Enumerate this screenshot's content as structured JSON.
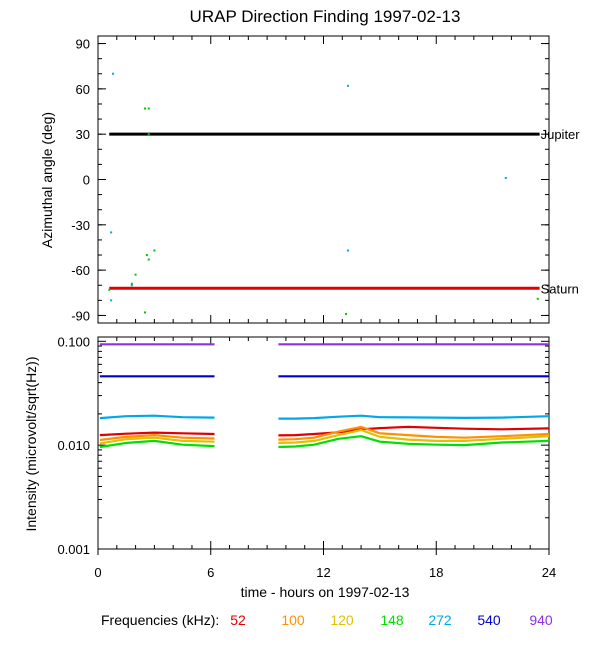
{
  "chart_data": [
    {
      "type": "scatter",
      "title": "URAP Direction Finding  1997-02-13",
      "ylabel": "Azimuthal angle (deg)",
      "xlim": [
        0,
        24
      ],
      "ylim": [
        -95,
        95
      ],
      "yticks": [
        90,
        60,
        30,
        0,
        -30,
        -60,
        -90
      ],
      "ytick_labels": [
        "90",
        "60",
        "30",
        "0",
        "-30",
        "-60",
        "-90"
      ],
      "reference_lines": [
        {
          "name": "Jupiter",
          "label": "Jupiter",
          "y": 30,
          "x": [
            0.6,
            23.5
          ],
          "color": "#000000"
        },
        {
          "name": "Saturn",
          "label": "Saturn",
          "y": -72,
          "x": [
            0.6,
            23.5
          ],
          "color": "#e00000"
        }
      ],
      "points": [
        {
          "x": 0.8,
          "y": 70,
          "color": "#00a8e0"
        },
        {
          "x": 0.7,
          "y": -35,
          "color": "#00a8e0"
        },
        {
          "x": 0.6,
          "y": -73,
          "color": "#00c800"
        },
        {
          "x": 0.7,
          "y": -80,
          "color": "#00a8e0"
        },
        {
          "x": 2.5,
          "y": 47,
          "color": "#00c800"
        },
        {
          "x": 2.7,
          "y": 47,
          "color": "#00c800"
        },
        {
          "x": 2.7,
          "y": 30,
          "color": "#00c800"
        },
        {
          "x": 2.6,
          "y": -50,
          "color": "#00c800"
        },
        {
          "x": 2.7,
          "y": -53,
          "color": "#00c800"
        },
        {
          "x": 3.0,
          "y": -47,
          "color": "#00c800"
        },
        {
          "x": 2.0,
          "y": -63,
          "color": "#00c800"
        },
        {
          "x": 1.8,
          "y": -69,
          "color": "#00c800"
        },
        {
          "x": 1.8,
          "y": -70,
          "color": "#00a8e0"
        },
        {
          "x": 2.5,
          "y": -88,
          "color": "#00c800"
        },
        {
          "x": 13.3,
          "y": 62,
          "color": "#00a8e0"
        },
        {
          "x": 13.3,
          "y": -47,
          "color": "#00a8e0"
        },
        {
          "x": 13.2,
          "y": -89,
          "color": "#00c800"
        },
        {
          "x": 21.7,
          "y": 1,
          "color": "#00a8e0"
        },
        {
          "x": 23.4,
          "y": -79,
          "color": "#00c800"
        }
      ]
    },
    {
      "type": "line",
      "ylabel": "Intensity (microvolt/sqrt(Hz))",
      "xlabel": "time - hours on 1997-02-13",
      "yscale": "log",
      "ylim": [
        0.001,
        0.11
      ],
      "yticks": [
        0.1,
        0.01,
        0.001
      ],
      "ytick_labels": [
        "0.100",
        "0.010",
        "0.001"
      ],
      "xticks": [
        0,
        6,
        12,
        18,
        24
      ],
      "xtick_labels": [
        "0",
        "6",
        "12",
        "18",
        "24"
      ],
      "segments": [
        [
          0.1,
          6.2
        ],
        [
          9.6,
          24
        ]
      ],
      "legend_title": "Frequencies (kHz):",
      "series": [
        {
          "name": "52",
          "color": "#e00000",
          "values": [
            0.0125,
            0.0129,
            0.0132,
            0.013,
            0.0128,
            0.0124,
            0.0125,
            0.0128,
            0.0133,
            0.0142,
            0.0146,
            0.015,
            0.0147,
            0.0144,
            0.0142,
            0.0145
          ]
        },
        {
          "name": "100",
          "color": "#ff9000",
          "values": [
            0.0112,
            0.012,
            0.0125,
            0.0118,
            0.0116,
            0.0113,
            0.0114,
            0.0118,
            0.0135,
            0.015,
            0.013,
            0.0125,
            0.012,
            0.0118,
            0.0122,
            0.0128
          ]
        },
        {
          "name": "120",
          "color": "#e0c000",
          "values": [
            0.0104,
            0.0114,
            0.0118,
            0.011,
            0.0108,
            0.0105,
            0.0106,
            0.011,
            0.0125,
            0.014,
            0.012,
            0.0113,
            0.011,
            0.011,
            0.0115,
            0.0122
          ]
        },
        {
          "name": "148",
          "color": "#00e000",
          "values": [
            0.0096,
            0.0105,
            0.011,
            0.0101,
            0.0098,
            0.0096,
            0.0097,
            0.0101,
            0.0115,
            0.0122,
            0.0108,
            0.0103,
            0.0101,
            0.01,
            0.0106,
            0.011
          ]
        },
        {
          "name": "272",
          "color": "#00a8e8",
          "values": [
            0.0182,
            0.019,
            0.0192,
            0.0186,
            0.0184,
            0.018,
            0.018,
            0.0182,
            0.0188,
            0.0192,
            0.0186,
            0.0185,
            0.0184,
            0.0183,
            0.0184,
            0.019
          ]
        },
        {
          "name": "540",
          "color": "#0000d0",
          "values": [
            0.046,
            0.046,
            0.046,
            0.046,
            0.046,
            0.046,
            0.046,
            0.046,
            0.046,
            0.046,
            0.046,
            0.046,
            0.046,
            0.046,
            0.046,
            0.046
          ]
        },
        {
          "name": "940",
          "color": "#9030e0",
          "values": [
            0.0935,
            0.0935,
            0.0935,
            0.0935,
            0.0935,
            0.0935,
            0.0935,
            0.0935,
            0.0935,
            0.0935,
            0.0935,
            0.0935,
            0.0935,
            0.0935,
            0.0935,
            0.0935
          ]
        }
      ],
      "x": [
        0.1,
        1.5,
        3.0,
        4.5,
        6.2,
        9.6,
        10.5,
        11.5,
        12.8,
        14.0,
        15.0,
        16.5,
        18.0,
        19.5,
        21.5,
        24.0
      ]
    }
  ]
}
